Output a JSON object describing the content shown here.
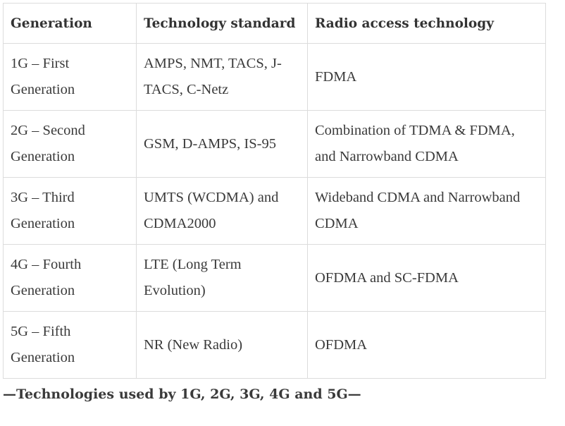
{
  "table": {
    "headers": [
      "Generation",
      "Technology standard",
      "Radio access technology"
    ],
    "rows": [
      [
        "1G – First Generation",
        "AMPS, NMT, TACS, J-TACS, C-Netz",
        "FDMA"
      ],
      [
        "2G – Second Generation",
        "GSM, D-AMPS, IS-95",
        "Combination of TDMA & FDMA, and Narrowband CDMA"
      ],
      [
        "3G – Third Generation",
        "UMTS (WCDMA) and CDMA2000",
        "Wideband CDMA and Narrowband CDMA"
      ],
      [
        "4G – Fourth Generation",
        "LTE (Long Term Evolution)",
        "OFDMA and SC-FDMA"
      ],
      [
        "5G – Fifth Generation",
        "NR (New Radio)",
        "OFDMA"
      ]
    ]
  },
  "caption": "—Technologies used by 1G, 2G, 3G, 4G and 5G—"
}
